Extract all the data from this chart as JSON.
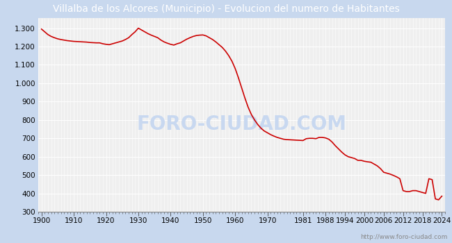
{
  "title": "Villalba de los Alcores (Municipio) - Evolucion del numero de Habitantes",
  "title_bg_color": "#4a86d8",
  "title_text_color": "#ffffff",
  "plot_bg_color": "#efefef",
  "fig_bg_color": "#c8d8ee",
  "line_color": "#cc0000",
  "grid_color": "#ffffff",
  "watermark_text": "FORO-CIUDAD.COM",
  "watermark_color": "#c8d8f0",
  "url_text": "http://www.foro-ciudad.com",
  "years": [
    1900,
    1901,
    1902,
    1903,
    1904,
    1905,
    1906,
    1907,
    1908,
    1909,
    1910,
    1911,
    1912,
    1913,
    1914,
    1915,
    1916,
    1917,
    1918,
    1919,
    1920,
    1921,
    1922,
    1923,
    1924,
    1925,
    1926,
    1927,
    1928,
    1929,
    1930,
    1931,
    1932,
    1933,
    1934,
    1935,
    1936,
    1937,
    1938,
    1939,
    1940,
    1941,
    1942,
    1943,
    1944,
    1945,
    1946,
    1947,
    1948,
    1949,
    1950,
    1951,
    1952,
    1953,
    1954,
    1955,
    1956,
    1957,
    1958,
    1959,
    1960,
    1961,
    1962,
    1963,
    1964,
    1965,
    1966,
    1967,
    1968,
    1969,
    1970,
    1971,
    1972,
    1973,
    1974,
    1975,
    1976,
    1977,
    1978,
    1979,
    1980,
    1981,
    1982,
    1983,
    1984,
    1985,
    1986,
    1987,
    1988,
    1989,
    1990,
    1991,
    1993,
    1994,
    1995,
    1996,
    1997,
    1998,
    1999,
    2000,
    2001,
    2002,
    2003,
    2004,
    2005,
    2006,
    2007,
    2008,
    2009,
    2010,
    2011,
    2012,
    2013,
    2014,
    2015,
    2016,
    2017,
    2018,
    2019,
    2020,
    2021,
    2022,
    2023,
    2024
  ],
  "population": [
    1295,
    1280,
    1265,
    1255,
    1248,
    1242,
    1238,
    1235,
    1232,
    1230,
    1228,
    1227,
    1226,
    1225,
    1224,
    1222,
    1221,
    1220,
    1220,
    1215,
    1212,
    1210,
    1215,
    1220,
    1225,
    1230,
    1238,
    1248,
    1265,
    1280,
    1300,
    1290,
    1280,
    1270,
    1262,
    1255,
    1248,
    1235,
    1225,
    1218,
    1212,
    1208,
    1215,
    1220,
    1230,
    1240,
    1248,
    1255,
    1260,
    1262,
    1263,
    1258,
    1248,
    1238,
    1225,
    1210,
    1195,
    1175,
    1150,
    1120,
    1080,
    1030,
    975,
    920,
    870,
    830,
    800,
    775,
    755,
    740,
    730,
    720,
    712,
    705,
    700,
    695,
    693,
    692,
    691,
    690,
    689,
    688,
    698,
    700,
    700,
    698,
    705,
    705,
    702,
    695,
    680,
    660,
    625,
    610,
    600,
    595,
    590,
    580,
    580,
    575,
    572,
    570,
    560,
    550,
    535,
    515,
    510,
    505,
    498,
    490,
    480,
    415,
    410,
    410,
    415,
    415,
    410,
    405,
    400,
    480,
    475,
    370,
    365,
    385
  ],
  "xtick_labels": [
    "1900",
    "1910",
    "1920",
    "1930",
    "1940",
    "1950",
    "1960",
    "1970",
    "1981",
    "1988",
    "1994",
    "2000",
    "2006",
    "2012",
    "2018",
    "2024"
  ],
  "xtick_positions": [
    1900,
    1910,
    1920,
    1930,
    1940,
    1950,
    1960,
    1970,
    1981,
    1988,
    1994,
    2000,
    2006,
    2012,
    2018,
    2024
  ],
  "ytick_labels": [
    "300",
    "400",
    "500",
    "600",
    "700",
    "800",
    "900",
    "1.000",
    "1.100",
    "1.200",
    "1.300"
  ],
  "ytick_values": [
    300,
    400,
    500,
    600,
    700,
    800,
    900,
    1000,
    1100,
    1200,
    1300
  ],
  "ylim": [
    300,
    1355
  ],
  "xlim": [
    1899,
    2025
  ],
  "title_fontsize": 10,
  "tick_fontsize": 7.5
}
